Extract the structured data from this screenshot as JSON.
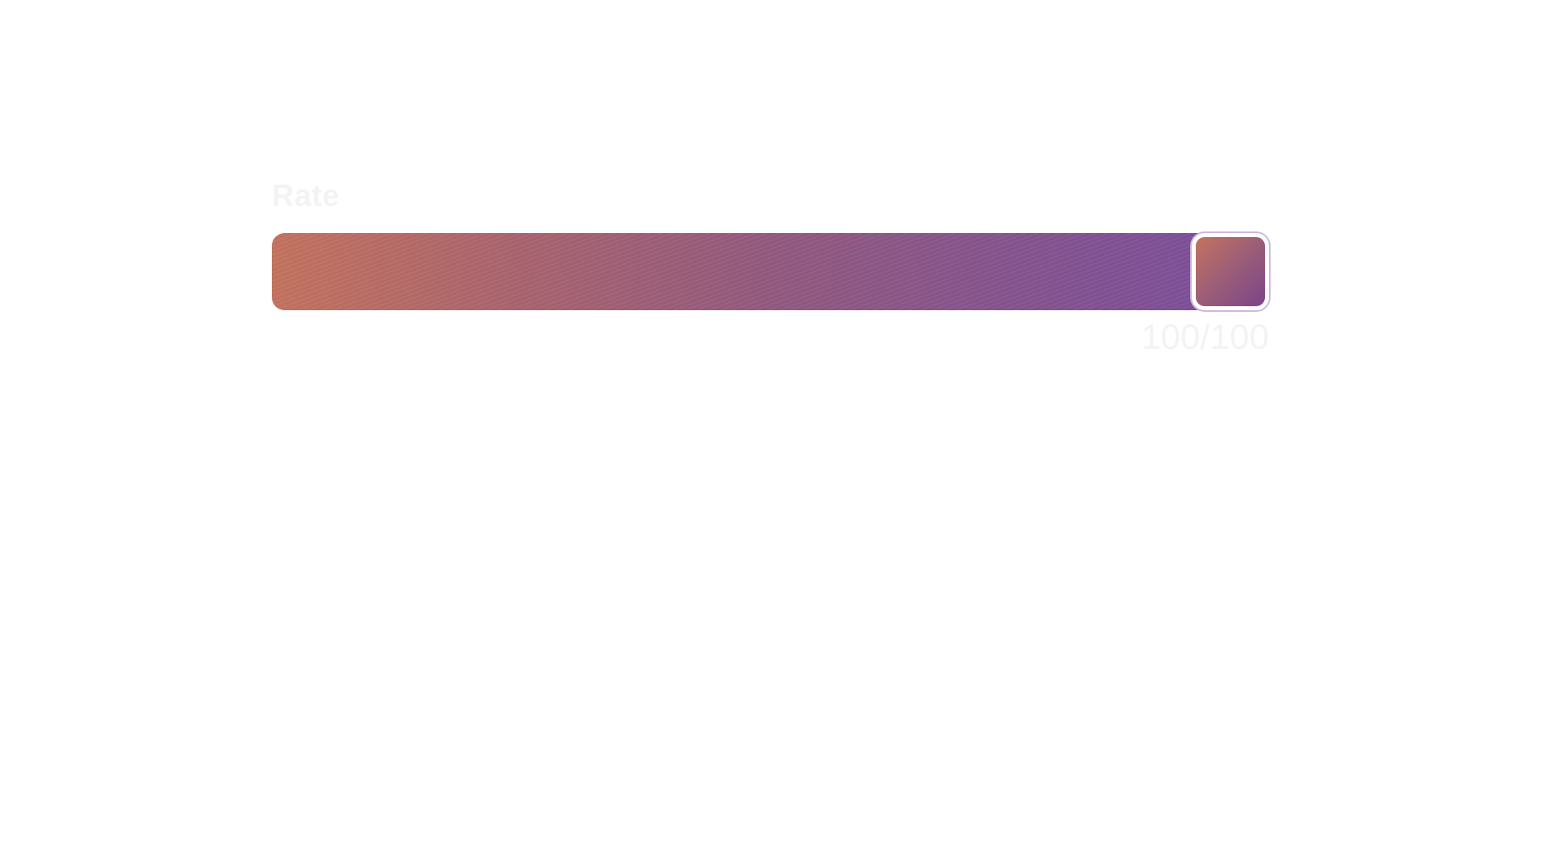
{
  "slider": {
    "label": "Rate",
    "value": 100,
    "max": 100,
    "value_text": "100/100",
    "colors": {
      "start": "#c4735f",
      "end": "#7b4f9d",
      "thumb_border": "#ffffff",
      "text": "#f3f3f5"
    }
  }
}
